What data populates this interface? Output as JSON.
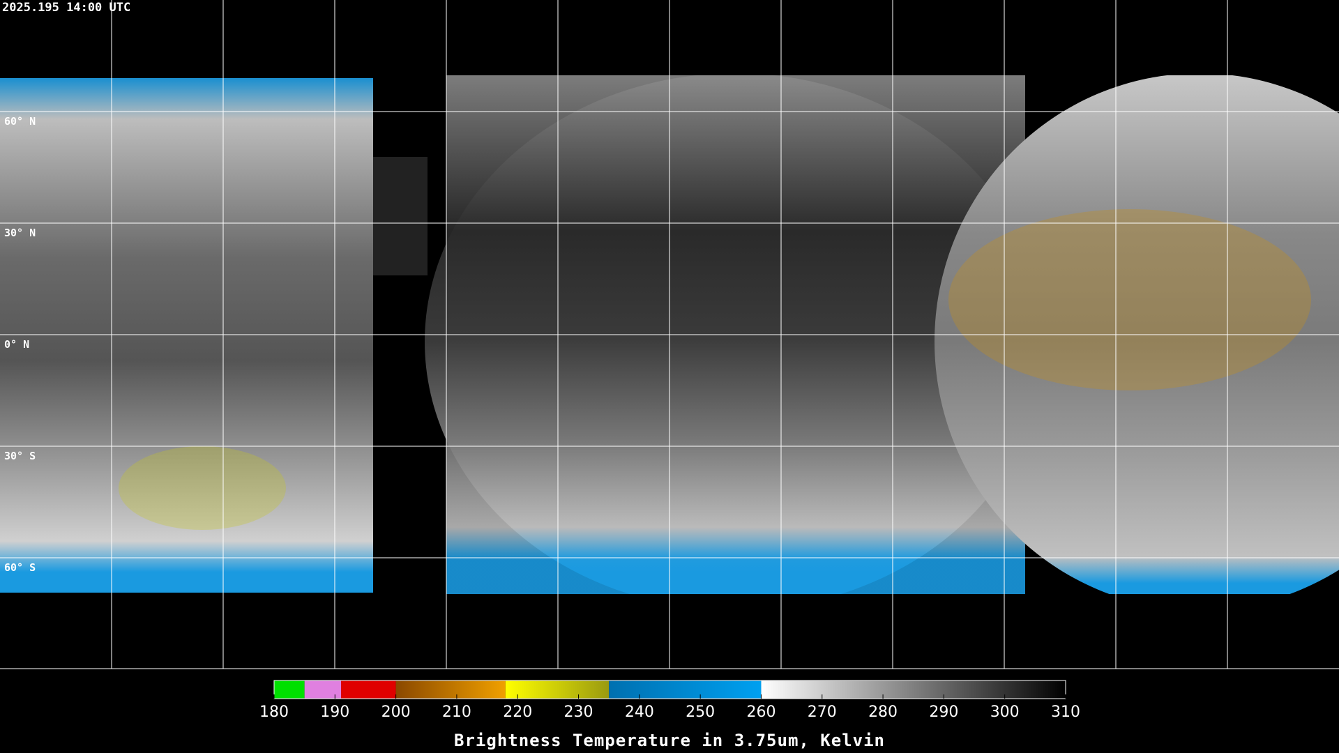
{
  "timestamp": "2025.195 14:00 UTC",
  "lat_labels": [
    "60° N",
    "30° N",
    "0° N",
    "30° S",
    "60° S"
  ],
  "colorbar": {
    "label": "Brightness Temperature in 3.75um, Kelvin",
    "lim": [
      180,
      310
    ],
    "ticks": [
      180,
      190,
      200,
      210,
      220,
      230,
      240,
      250,
      260,
      270,
      280,
      290,
      300,
      310
    ],
    "segments": [
      {
        "from": 180,
        "to": 185,
        "color_from": "#00e000",
        "color_to": "#00e000"
      },
      {
        "from": 185,
        "to": 191,
        "color_from": "#e080e0",
        "color_to": "#e080e0"
      },
      {
        "from": 191,
        "to": 200,
        "color_from": "#e00000",
        "color_to": "#e00000"
      },
      {
        "from": 200,
        "to": 218,
        "color_from": "#8a4800",
        "color_to": "#f0a000"
      },
      {
        "from": 218,
        "to": 235,
        "color_from": "#ffff00",
        "color_to": "#9a9a10"
      },
      {
        "from": 235,
        "to": 260,
        "color_from": "#0070b0",
        "color_to": "#00a0f0"
      },
      {
        "from": 260,
        "to": 310,
        "color_from": "#ffffff",
        "color_to": "#000000"
      }
    ]
  }
}
